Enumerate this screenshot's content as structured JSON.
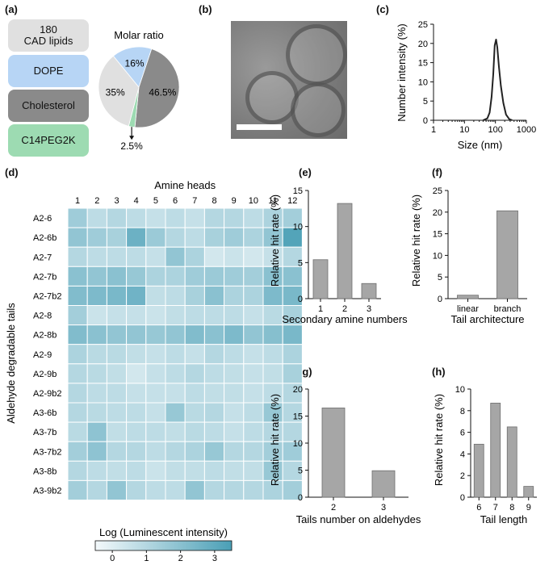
{
  "panels": {
    "a": "(a)",
    "b": "(b)",
    "c": "(c)",
    "d": "(d)",
    "e": "(e)",
    "f": "(f)",
    "g": "(g)",
    "h": "(h)"
  },
  "components": [
    {
      "label": "180\nCAD lipids",
      "color": "#e0e0e0"
    },
    {
      "label": "DOPE",
      "color": "#b7d5f5"
    },
    {
      "label": "Cholesterol",
      "color": "#8a8a8a"
    },
    {
      "label": "C14PEG2K",
      "color": "#9ddbb2"
    }
  ],
  "colors": {
    "bar": "#a6a6a6",
    "heat_low": "#f4f9fb",
    "heat_high": "#4a9fb6",
    "line": "#222222"
  },
  "chart_data": [
    {
      "id": "a",
      "type": "pie",
      "title": "Molar ratio",
      "slices": [
        {
          "label": "46.5%",
          "value": 46.5,
          "color": "#8a8a8a"
        },
        {
          "label": "2.5%",
          "value": 2.5,
          "color": "#9ddbb2"
        },
        {
          "label": "35%",
          "value": 35,
          "color": "#e0e0e0"
        },
        {
          "label": "16%",
          "value": 16,
          "color": "#b7d5f5"
        }
      ]
    },
    {
      "id": "c",
      "type": "line",
      "xlabel": "Size (nm)",
      "ylabel": "Number intensity (%)",
      "xscale": "log",
      "xlim": [
        1,
        1000
      ],
      "ylim": [
        0,
        25
      ],
      "xticks": [
        1,
        10,
        100,
        1000
      ],
      "xticklabels": [
        "1",
        "10",
        "100",
        "1000"
      ],
      "yticks": [
        0,
        5,
        10,
        15,
        20,
        25
      ],
      "yticklabels": [
        "0",
        "5",
        "10",
        "15",
        "20",
        "25"
      ],
      "x": [
        40,
        55,
        65,
        75,
        85,
        95,
        105,
        115,
        130,
        150,
        180,
        220,
        280,
        350
      ],
      "y": [
        0,
        0.5,
        2,
        6,
        12,
        19.5,
        21,
        19,
        14,
        9,
        4.5,
        1.5,
        0.3,
        0
      ]
    },
    {
      "id": "d",
      "type": "heatmap",
      "xlabel": "Amine heads",
      "ylabel": "Aldehyde degradable tails",
      "colorbar_label": "Log (Luminescent intensity)",
      "colorbar_ticks": [
        "0",
        "1",
        "2",
        "3"
      ],
      "vmin": -0.5,
      "vmax": 3.5,
      "columns": [
        "1",
        "2",
        "3",
        "4",
        "5",
        "6",
        "7",
        "8",
        "9",
        "10",
        "11",
        "12"
      ],
      "rows": [
        "A2-6",
        "A2-6b",
        "A2-7",
        "A2-7b",
        "A2-7b2",
        "A2-8",
        "A2-8b",
        "A2-9",
        "A2-9b",
        "A2-9b2",
        "A3-6b",
        "A3-7b",
        "A3-7b2",
        "A3-8b",
        "A3-9b2"
      ],
      "values": [
        [
          1.5,
          0.8,
          1.0,
          0.8,
          0.6,
          0.8,
          0.6,
          1.0,
          1.0,
          0.8,
          1.2,
          1.4
        ],
        [
          1.8,
          1.5,
          1.3,
          2.7,
          1.6,
          1.0,
          0.8,
          1.3,
          1.5,
          1.2,
          1.8,
          3.3
        ],
        [
          1.0,
          0.8,
          0.8,
          0.8,
          0.6,
          1.8,
          1.2,
          0.3,
          0.5,
          0.3,
          0.6,
          1.0
        ],
        [
          2.0,
          1.8,
          2.0,
          1.7,
          1.2,
          1.2,
          1.5,
          1.6,
          1.5,
          1.4,
          2.0,
          2.0
        ],
        [
          2.2,
          2.3,
          2.4,
          2.6,
          0.7,
          0.8,
          1.3,
          2.0,
          1.2,
          1.2,
          2.3,
          2.4
        ],
        [
          1.4,
          0.5,
          0.6,
          0.6,
          0.5,
          0.7,
          0.8,
          0.8,
          0.8,
          0.6,
          0.9,
          1.3
        ],
        [
          2.2,
          2.0,
          1.8,
          1.8,
          1.7,
          1.8,
          2.2,
          2.0,
          2.3,
          1.8,
          2.1,
          2.4
        ],
        [
          1.2,
          0.9,
          0.9,
          0.7,
          0.6,
          0.8,
          0.6,
          1.0,
          0.8,
          0.6,
          0.8,
          1.2
        ],
        [
          1.0,
          0.9,
          0.7,
          0.3,
          0.6,
          0.8,
          1.0,
          0.8,
          0.7,
          0.6,
          0.7,
          1.3
        ],
        [
          1.0,
          0.8,
          0.8,
          0.6,
          0.6,
          0.6,
          0.8,
          0.7,
          0.7,
          0.6,
          0.8,
          1.0
        ],
        [
          1.0,
          0.9,
          0.8,
          0.8,
          0.6,
          1.7,
          0.9,
          1.0,
          0.6,
          0.8,
          1.7,
          1.0
        ],
        [
          0.9,
          1.9,
          0.7,
          0.8,
          0.8,
          0.7,
          0.9,
          0.8,
          0.6,
          0.8,
          1.0,
          1.0
        ],
        [
          1.4,
          1.9,
          1.0,
          1.0,
          0.8,
          1.0,
          1.2,
          1.7,
          1.0,
          1.0,
          1.4,
          1.5
        ],
        [
          1.0,
          0.8,
          0.7,
          0.8,
          0.5,
          0.7,
          0.7,
          0.8,
          0.7,
          0.7,
          1.7,
          1.0
        ],
        [
          1.4,
          1.0,
          1.8,
          1.0,
          0.8,
          0.8,
          1.8,
          1.0,
          1.0,
          1.0,
          1.2,
          1.4
        ]
      ]
    },
    {
      "id": "e",
      "type": "bar",
      "categories": [
        "1",
        "2",
        "3"
      ],
      "values": [
        5.4,
        13.2,
        2.1
      ],
      "xlabel": "Secondary amine numbers",
      "ylabel": "Relative hit rate (%)",
      "ylim": [
        0,
        15
      ],
      "yticks": [
        "0",
        "5",
        "10",
        "15"
      ]
    },
    {
      "id": "f",
      "type": "bar",
      "categories": [
        "linear",
        "branch"
      ],
      "values": [
        0.8,
        20.3
      ],
      "xlabel": "Tail architecture",
      "ylabel": "Relative hit rate (%)",
      "ylim": [
        0,
        25
      ],
      "yticks": [
        "0",
        "5",
        "10",
        "15",
        "20",
        "25"
      ]
    },
    {
      "id": "g",
      "type": "bar",
      "categories": [
        "2",
        "3"
      ],
      "values": [
        16.5,
        4.9
      ],
      "xlabel": "Tails number on aldehydes",
      "ylabel": "Relative hit rate (%)",
      "ylim": [
        0,
        20
      ],
      "yticks": [
        "0",
        "5",
        "10",
        "15",
        "20"
      ]
    },
    {
      "id": "h",
      "type": "bar",
      "categories": [
        "6",
        "7",
        "8",
        "9"
      ],
      "values": [
        4.9,
        8.7,
        6.5,
        1.0
      ],
      "xlabel": "Tail length",
      "ylabel": "Relative hit rate (%)",
      "ylim": [
        0,
        10
      ],
      "yticks": [
        "0",
        "2",
        "4",
        "6",
        "8",
        "10"
      ]
    }
  ]
}
